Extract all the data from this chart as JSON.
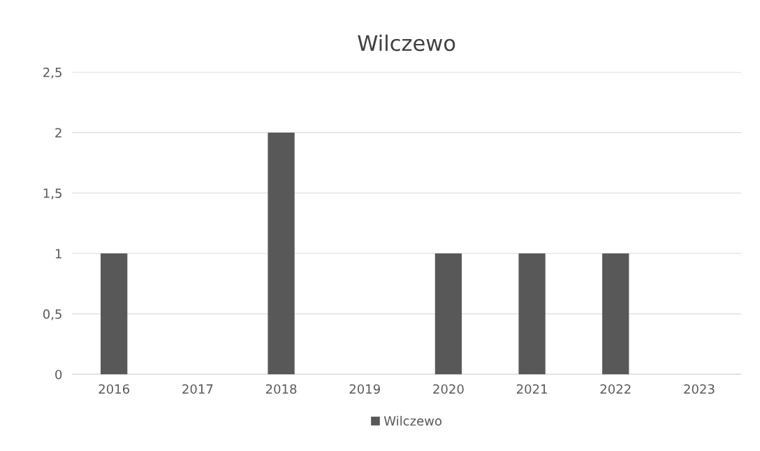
{
  "chart_data": {
    "type": "bar",
    "title": "Wilczewo",
    "categories": [
      "2016",
      "2017",
      "2018",
      "2019",
      "2020",
      "2021",
      "2022",
      "2023"
    ],
    "series": [
      {
        "name": "Wilczewo",
        "color": "#585858",
        "values": [
          1,
          0,
          2,
          0,
          1,
          1,
          1,
          0
        ]
      }
    ],
    "ylim": [
      0,
      2.5
    ],
    "yticks": [
      0,
      {
        "value": 0.5,
        "label": "0,5"
      },
      1,
      {
        "value": 1.5,
        "label": "1,5"
      },
      2,
      {
        "value": 2.5,
        "label": "2,5"
      }
    ],
    "grid": "y",
    "legend": "bottom"
  }
}
